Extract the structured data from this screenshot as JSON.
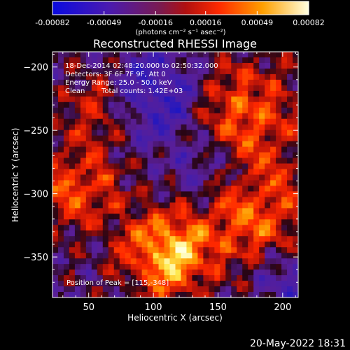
{
  "chart_data": {
    "type": "heatmap",
    "title": "Reconstructed RHESSI Image",
    "xlabel": "Heliocentric X (arcsec)",
    "ylabel": "Heliocentric Y (arcsec)",
    "xlim": [
      22,
      212
    ],
    "ylim": [
      -382,
      -188
    ],
    "x_ticks": [
      50,
      100,
      150,
      200
    ],
    "y_ticks": [
      -200,
      -250,
      -300,
      -350
    ],
    "colorbar": {
      "tick_labels": [
        "-0.00082",
        "-0.00049",
        "-0.00016",
        "0.00016",
        "0.00049",
        "0.00082"
      ],
      "tick_values": [
        -0.00082,
        -0.00049,
        -0.00016,
        0.00016,
        0.00049,
        0.00082
      ],
      "range": [
        -0.00082,
        0.00082
      ],
      "units": "(photons cm⁻² s⁻¹ asec⁻²)",
      "colors": [
        "#1010c0",
        "#5020a0",
        "#a01818",
        "#ff2000",
        "#ff9000",
        "#ffffa0"
      ]
    },
    "annotations": [
      "18-Dec-2014 02:48:20.000 to 02:50:32.000",
      "Detectors: 3F 6F 7F 9F, Att 0",
      "Energy Range: 25.0 - 50.0 keV",
      "Clean",
      "Total counts: 1.42E+03"
    ],
    "peak_label": "Position of Peak = [115,-348]",
    "peak_position": [
      115,
      -348
    ]
  },
  "footer": {
    "timestamp": "20-May-2022 18:31"
  }
}
